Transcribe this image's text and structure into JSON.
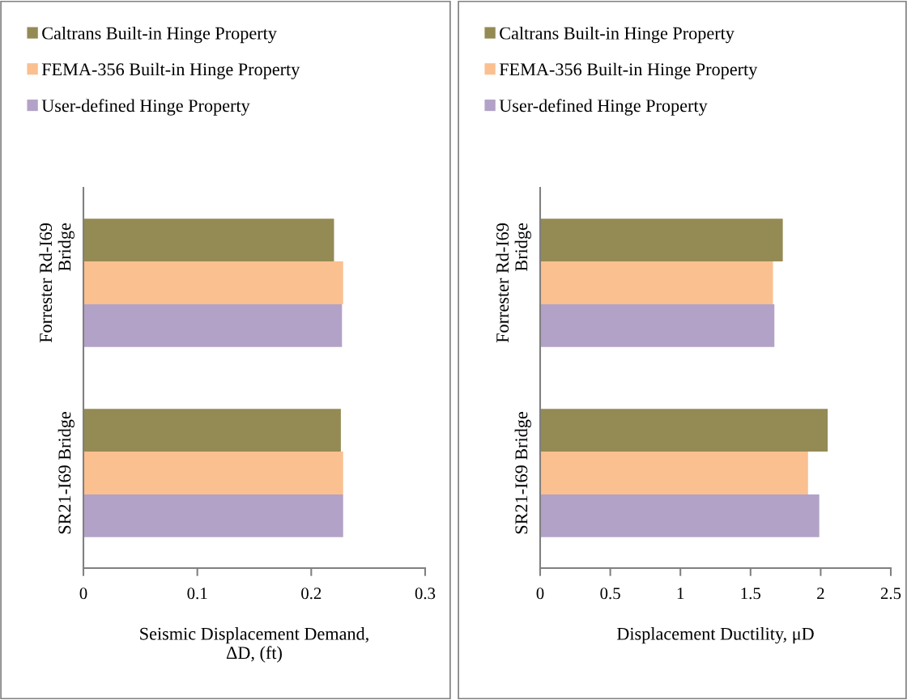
{
  "chart_data": [
    {
      "type": "bar",
      "orientation": "horizontal",
      "categories": [
        "Forrester Rd-I69\nBridge",
        "SR21-I69 Bridge"
      ],
      "xlabel": "Seismic Displacement Demand,\nΔD, (ft)",
      "xlim": [
        0,
        0.3
      ],
      "xticks": [
        0,
        0.1,
        0.2,
        0.3
      ],
      "grid": false,
      "legend": "top",
      "series": [
        {
          "name": "Caltrans Built-in Hinge Property",
          "color": "#948a54",
          "values": [
            0.22,
            0.226
          ]
        },
        {
          "name": "FEMA-356 Built-in Hinge Property",
          "color": "#fac090",
          "values": [
            0.228,
            0.228
          ]
        },
        {
          "name": "User-defined Hinge Property",
          "color": "#b3a2c7",
          "values": [
            0.227,
            0.228
          ]
        }
      ]
    },
    {
      "type": "bar",
      "orientation": "horizontal",
      "categories": [
        "Forrester Rd-I69\nBridge",
        "SR21-I69 Bridge"
      ],
      "xlabel": "Displacement Ductility, μD",
      "xlim": [
        0,
        2.5
      ],
      "xticks": [
        0,
        0.5,
        1,
        1.5,
        2,
        2.5
      ],
      "grid": false,
      "legend": "top",
      "series": [
        {
          "name": "Caltrans Built-in Hinge Property",
          "color": "#948a54",
          "values": [
            1.73,
            2.05
          ]
        },
        {
          "name": "FEMA-356 Built-in Hinge Property",
          "color": "#fac090",
          "values": [
            1.66,
            1.91
          ]
        },
        {
          "name": "User-defined Hinge Property",
          "color": "#b3a2c7",
          "values": [
            1.67,
            1.99
          ]
        }
      ]
    }
  ]
}
